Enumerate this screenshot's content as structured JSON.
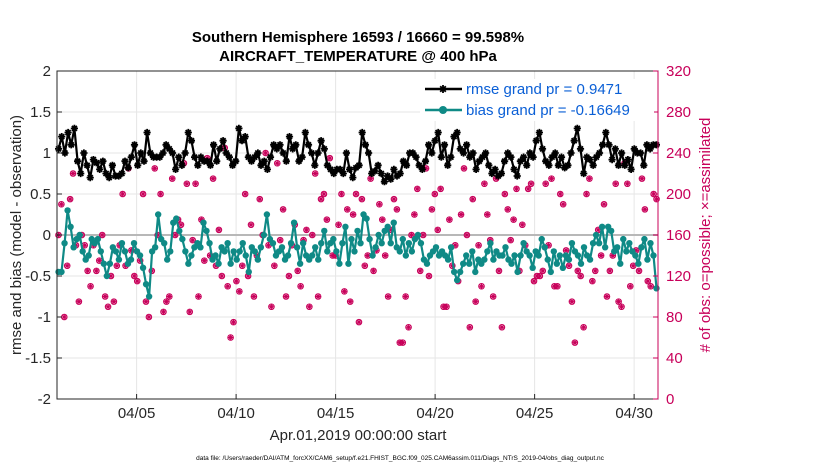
{
  "chart_data": {
    "type": "line",
    "title": "Southern Hemisphere 16593 / 16660 = 99.598%",
    "subtitle": "AIRCRAFT_TEMPERATURE @ 400 hPa",
    "xlabel": "Apr.01,2019 00:00:00 start",
    "ylabel": "rmse and bias (model - observation)",
    "y2label": "# of obs: o=possible; ×=assimilated",
    "ylim": [
      -2,
      2
    ],
    "y2lim": [
      0,
      320
    ],
    "xlim": [
      1.0,
      31.2
    ],
    "y_ticks": [
      "-2",
      "-1.5",
      "-1",
      "-0.5",
      "0",
      "0.5",
      "1",
      "1.5",
      "2"
    ],
    "y2_ticks": [
      "0",
      "40",
      "80",
      "120",
      "160",
      "200",
      "240",
      "280",
      "320"
    ],
    "x_ticks": [
      {
        "value": 5,
        "label": "04/05"
      },
      {
        "value": 10,
        "label": "04/10"
      },
      {
        "value": 15,
        "label": "04/15"
      },
      {
        "value": 20,
        "label": "04/20"
      },
      {
        "value": 25,
        "label": "04/25"
      },
      {
        "value": 30,
        "label": "04/30"
      }
    ],
    "legend": [
      {
        "name": "rmse grand pr = 0.9471",
        "color": "#000000"
      },
      {
        "name": "bias grand pr = -0.16649",
        "color": "#0f8a86"
      }
    ],
    "footnote": "data file: /Users/raeder/DAI/ATM_forcXX/CAM6_setup/f.e21.FHIST_BGC.f09_025.CAM6assim.011/Diags_NTrS_2019-04/obs_diag_output.nc",
    "series": [
      {
        "name": "rmse",
        "color": "#000000",
        "values": [
          1.05,
          1.2,
          1.0,
          1.25,
          1.1,
          1.3,
          0.9,
          0.75,
          1.0,
          0.85,
          0.7,
          0.92,
          0.88,
          0.8,
          0.9,
          0.75,
          0.7,
          0.85,
          0.72,
          0.72,
          0.75,
          0.9,
          0.82,
          0.95,
          1.1,
          0.85,
          1.0,
          0.9,
          1.25,
          1.0,
          0.95,
          0.95,
          0.95,
          1.0,
          1.1,
          1.05,
          1.0,
          0.8,
          0.95,
          0.85,
          1.0,
          1.25,
          1.15,
          0.95,
          0.85,
          0.95,
          0.9,
          0.9,
          0.85,
          1.1,
          0.9,
          1.05,
          1.15,
          1.0,
          0.95,
          0.85,
          0.9,
          1.3,
          1.15,
          1.2,
          0.95,
          0.9,
          0.95,
          1.0,
          0.85,
          0.9,
          0.8,
          0.95,
          1.1,
          1.05,
          1.1,
          1.0,
          0.9,
          1.2,
          1.05,
          1.1,
          0.9,
          0.95,
          1.25,
          1.1,
          1.0,
          0.85,
          1.0,
          1.15,
          1.05,
          0.85,
          0.8,
          0.75,
          0.8,
          0.8,
          0.75,
          1.0,
          0.8,
          0.7,
          0.82,
          0.85,
          1.25,
          1.1,
          1.0,
          0.75,
          0.78,
          0.85,
          0.75,
          0.65,
          0.72,
          0.68,
          0.8,
          0.72,
          0.75,
          0.9,
          0.85,
          1.0,
          1.0,
          0.95,
          0.85,
          0.8,
          0.9,
          1.1,
          1.0,
          1.15,
          1.25,
          0.95,
          1.1,
          0.85,
          0.95,
          1.2,
          1.25,
          1.05,
          1.0,
          1.1,
          0.95,
          1.0,
          0.8,
          0.9,
          0.95,
          1.0,
          0.85,
          0.75,
          0.8,
          0.72,
          0.75,
          0.9,
          1.0,
          0.95,
          0.8,
          0.72,
          0.9,
          0.95,
          0.85,
          1.0,
          0.95,
          1.15,
          1.25,
          1.05,
          0.9,
          0.85,
          0.95,
          1.0,
          0.85,
          0.95,
          0.82,
          0.85,
          1.0,
          1.15,
          1.3,
          1.05,
          0.75,
          0.95,
          0.92,
          0.85,
          0.95,
          1.0,
          1.1,
          1.25,
          1.1,
          0.92,
          1.05,
          0.85,
          1.0,
          0.85,
          0.92,
          0.8,
          1.05,
          1.0,
          1.0,
          0.85,
          1.1,
          1.05,
          1.1,
          1.1
        ]
      },
      {
        "name": "bias",
        "color": "#0f8a86",
        "values": [
          -0.45,
          -0.45,
          -0.1,
          0.3,
          0.1,
          -0.15,
          -0.05,
          0.0,
          -0.2,
          -0.3,
          -0.25,
          -0.05,
          -0.1,
          -0.05,
          -0.2,
          -0.35,
          -0.5,
          -0.35,
          -0.15,
          -0.2,
          -0.3,
          -0.1,
          -0.2,
          -0.35,
          -0.3,
          -0.1,
          -0.2,
          -0.25,
          -0.4,
          -0.6,
          -0.75,
          -0.2,
          -0.15,
          0.25,
          -0.05,
          -0.1,
          -0.3,
          -0.2,
          0.15,
          0.2,
          0.05,
          -0.05,
          -0.2,
          -0.35,
          -0.25,
          -0.15,
          -0.1,
          -0.15,
          0.15,
          0.05,
          -0.1,
          -0.3,
          -0.25,
          -0.35,
          -0.15,
          -0.2,
          -0.1,
          -0.35,
          -0.2,
          -0.3,
          -0.2,
          -0.1,
          -0.25,
          -0.45,
          -0.15,
          -0.2,
          -0.3,
          -0.15,
          0.0,
          0.25,
          -0.05,
          -0.1,
          -0.25,
          -0.2,
          -0.15,
          -0.3,
          -0.25,
          -0.1,
          0.15,
          -0.15,
          -0.35,
          -0.1,
          -0.25,
          -0.3,
          -0.25,
          -0.15,
          -0.3,
          -0.1,
          0.05,
          -0.2,
          -0.1,
          -0.05,
          -0.2,
          -0.35,
          -0.1,
          0.1,
          -0.35,
          -0.05,
          -0.2,
          0.05,
          -0.1,
          0.25,
          0.2,
          -0.05,
          -0.25,
          -0.15,
          0.0,
          -0.1,
          0.05,
          0.1,
          -0.1,
          0.15,
          -0.15,
          -0.2,
          -0.05,
          -0.25,
          -0.1,
          -0.2,
          -0.05,
          0.0,
          -0.1,
          -0.3,
          -0.35,
          -0.25,
          -0.2,
          -0.15,
          -0.25,
          -0.2,
          -0.25,
          -0.3,
          -0.15,
          -0.45,
          -0.55,
          -0.45,
          -0.35,
          -0.25,
          -0.35,
          -0.2,
          -0.45,
          -0.3,
          -0.35,
          -0.3,
          -0.2,
          -0.1,
          -0.3,
          -0.2,
          -0.25,
          -0.25,
          -0.15,
          -0.3,
          -0.35,
          -0.25,
          -0.45,
          -0.25,
          -0.1,
          -0.2,
          -0.25,
          -0.4,
          -0.2,
          -0.25,
          -0.05,
          -0.15,
          -0.3,
          -0.45,
          -0.2,
          -0.35,
          -0.25,
          -0.4,
          -0.25,
          -0.3,
          -0.1,
          -0.2,
          -0.25,
          -0.35,
          -0.15,
          -0.25,
          -0.3,
          -0.1,
          0.0,
          -0.1,
          0.1,
          -0.15,
          0.1,
          0.05,
          -0.2,
          -0.15,
          -0.35,
          -0.05,
          -0.2,
          -0.1,
          -0.2,
          -0.25,
          -0.35,
          -0.15,
          -0.05,
          -0.3,
          -0.1,
          -0.25,
          -0.65
        ]
      },
      {
        "name": "obs_possible",
        "color": "#c8005a",
        "values": [
          160,
          190,
          80,
          130,
          195,
          220,
          150,
          95,
          160,
          150,
          125,
          110,
          150,
          125,
          135,
          160,
          100,
          90,
          120,
          95,
          130,
          150,
          200,
          130,
          225,
          145,
          120,
          115,
          135,
          200,
          95,
          80,
          125,
          225,
          160,
          200,
          85,
          95,
          100,
          215,
          160,
          175,
          170,
          230,
          210,
          85,
          155,
          210,
          100,
          175,
          135,
          235,
          140,
          215,
          130,
          165,
          120,
          245,
          110,
          60,
          75,
          115,
          105,
          130,
          200,
          120,
          170,
          100,
          140,
          195,
          160,
          240,
          150,
          90,
          130,
          230,
          155,
          185,
          100,
          120,
          150,
          170,
          125,
          110,
          155,
          165,
          90,
          160,
          220,
          100,
          195,
          200,
          175,
          235,
          140,
          140,
          170,
          200,
          105,
          185,
          95,
          180,
          200,
          75,
          195,
          130,
          140,
          215,
          125,
          145,
          190,
          175,
          140,
          100,
          165,
          195,
          185,
          55,
          55,
          100,
          70,
          160,
          180,
          205,
          125,
          160,
          225,
          120,
          185,
          200,
          165,
          205,
          90,
          90,
          175,
          130,
          150,
          115,
          180,
          225,
          160,
          70,
          195,
          95,
          150,
          110,
          210,
          180,
          155,
          100,
          215,
          125,
          70,
          200,
          185,
          155,
          175,
          205,
          125,
          170,
          150,
          205,
          210,
          115,
          120,
          120,
          125,
          210,
          150,
          215,
          110,
          110,
          200,
          190,
          145,
          130,
          95,
          55,
          125,
          120,
          70,
          200,
          215,
          115,
          125,
          165,
          140,
          190,
          100,
          125,
          140,
          210,
          95,
          90,
          230,
          210,
          110,
          130,
          145,
          125,
          215,
          185,
          115,
          110,
          200,
          195
        ]
      },
      {
        "name": "obs_assimilated",
        "color": "#c8005a",
        "values": [
          160,
          190,
          80,
          130,
          195,
          220,
          150,
          95,
          160,
          150,
          125,
          110,
          150,
          125,
          135,
          160,
          100,
          90,
          120,
          95,
          130,
          150,
          200,
          130,
          225,
          145,
          120,
          115,
          135,
          200,
          95,
          80,
          125,
          225,
          160,
          200,
          85,
          95,
          100,
          215,
          160,
          175,
          170,
          230,
          210,
          85,
          155,
          210,
          100,
          175,
          135,
          235,
          140,
          215,
          130,
          165,
          120,
          245,
          110,
          60,
          75,
          115,
          105,
          130,
          200,
          120,
          170,
          100,
          140,
          195,
          160,
          240,
          150,
          90,
          130,
          230,
          155,
          185,
          100,
          120,
          150,
          170,
          125,
          110,
          155,
          165,
          90,
          160,
          220,
          100,
          195,
          200,
          175,
          235,
          140,
          140,
          170,
          200,
          105,
          185,
          95,
          180,
          200,
          75,
          195,
          130,
          140,
          215,
          125,
          145,
          190,
          175,
          140,
          100,
          165,
          195,
          185,
          55,
          55,
          100,
          70,
          160,
          180,
          205,
          125,
          160,
          225,
          120,
          185,
          200,
          165,
          205,
          90,
          90,
          175,
          130,
          150,
          115,
          180,
          225,
          160,
          70,
          195,
          95,
          150,
          110,
          210,
          180,
          155,
          100,
          215,
          125,
          70,
          200,
          185,
          155,
          175,
          205,
          125,
          170,
          150,
          205,
          210,
          115,
          120,
          120,
          125,
          210,
          150,
          215,
          110,
          110,
          200,
          190,
          145,
          130,
          95,
          55,
          125,
          120,
          70,
          200,
          215,
          115,
          125,
          165,
          140,
          190,
          100,
          125,
          140,
          210,
          95,
          90,
          230,
          210,
          110,
          130,
          145,
          125,
          215,
          185,
          115,
          110,
          200,
          195
        ]
      }
    ]
  }
}
